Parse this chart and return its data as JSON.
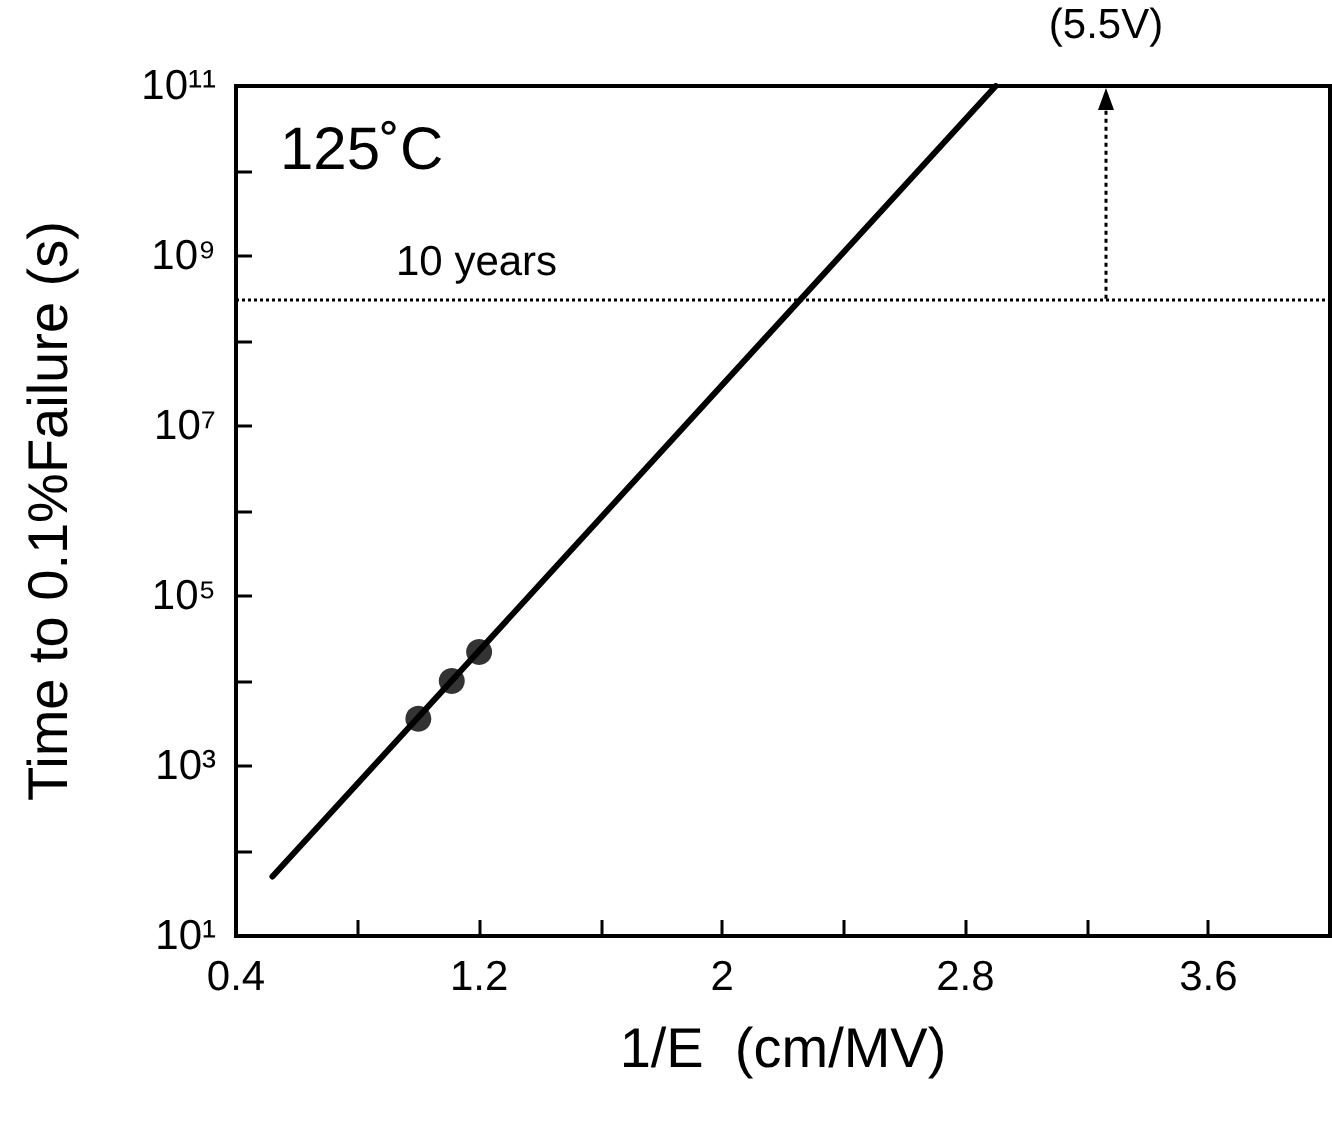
{
  "chart_data": {
    "type": "scatter",
    "xlabel": "1/E  (cm/MV)",
    "ylabel": "Time to 0.1%Failure (s)",
    "annotations": [
      "125˚C",
      "(5.5V)"
    ],
    "series": [
      {
        "type": "line",
        "color": "#000000",
        "x": [
          0.52,
          2.9
        ],
        "values": [
          50,
          100000000000
        ],
        "marker": "none",
        "line_style": "solid"
      },
      {
        "color": "#000000",
        "x": [
          1.0,
          1.11,
          1.2
        ],
        "values": [
          3600,
          10000,
          22000
        ],
        "marker": "circle"
      }
    ],
    "xlim": [
      0.4,
      4.0
    ],
    "xticks": [
      0.4,
      {
        "value": 0.8,
        "label": null
      },
      1.2,
      {
        "value": 1.6,
        "label": null
      },
      2,
      {
        "value": 2.4,
        "label": null
      },
      2.8,
      {
        "value": 3.2,
        "label": null
      },
      3.6
    ],
    "ylim": [
      10,
      100000000000
    ],
    "log": "y",
    "yticks": [
      {
        "value": 10,
        "label": "10¹"
      },
      {
        "value": 100,
        "label": null
      },
      {
        "value": 1000,
        "label": "10³"
      },
      {
        "value": 10000,
        "label": null
      },
      {
        "value": 100000,
        "label": "10⁵"
      },
      {
        "value": 1000000,
        "label": null
      },
      {
        "value": 10000000,
        "label": "10⁷"
      },
      {
        "value": 100000000,
        "label": null
      },
      {
        "value": 1000000000,
        "label": "10⁹"
      },
      {
        "value": 10000000000,
        "label": null
      },
      {
        "value": 100000000000,
        "label": "10¹¹"
      }
    ],
    "ref_lines": [
      {
        "axis": "y",
        "value": 315000000,
        "label": "10 years",
        "line_style": "dotted"
      }
    ],
    "grid": false
  }
}
